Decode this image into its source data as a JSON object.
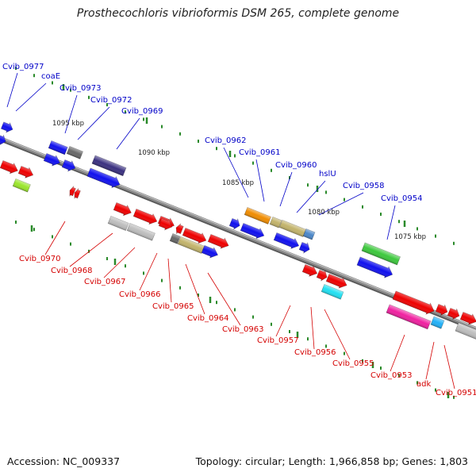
{
  "title": "Prosthecochloris vibrioformis DSM 265, complete genome",
  "footer": {
    "accession": "Accession: NC_009337",
    "topology": "Topology: circular; Length: 1,966,858 bp; Genes: 1,803"
  },
  "colors": {
    "top_strand_label": "#0000c8",
    "bottom_strand_label": "#d40000",
    "backbone": "#8a8a8a",
    "tick": "#2a8a2a",
    "kbp_label": "#222222"
  },
  "kbp_labels": [
    "1095 kbp",
    "1090 kbp",
    "1085 kbp",
    "1080 kbp",
    "1075 kbp"
  ],
  "top_labels": [
    "Cvib_0977",
    "coaE",
    "Cvib_0973",
    "Cvib_0972",
    "Cvib_0969",
    "Cvib_0962",
    "Cvib_0961",
    "Cvib_0960",
    "hslU",
    "Cvib_0958",
    "Cvib_0954"
  ],
  "bottom_labels": [
    "Cvib_0970",
    "Cvib_0968",
    "Cvib_0967",
    "Cvib_0966",
    "Cvib_0965",
    "Cvib_0964",
    "Cvib_0963",
    "Cvib_0957",
    "Cvib_0956",
    "Cvib_0955",
    "Cvib_0953",
    "adk",
    "Cvib_0951"
  ],
  "gene_colors": {
    "blue": "#1010ee",
    "red": "#ee0000",
    "grey": "#bdbdbd",
    "darkgrey": "#666666",
    "navy": "#3a3080",
    "lime": "#9ae62a",
    "olive": "#c2b36a",
    "orange": "#f08c00",
    "steel": "#4a86c8",
    "cyan": "#20e0f2",
    "green": "#3cc83c",
    "magenta": "#f020a0",
    "sky": "#20b0f8"
  }
}
